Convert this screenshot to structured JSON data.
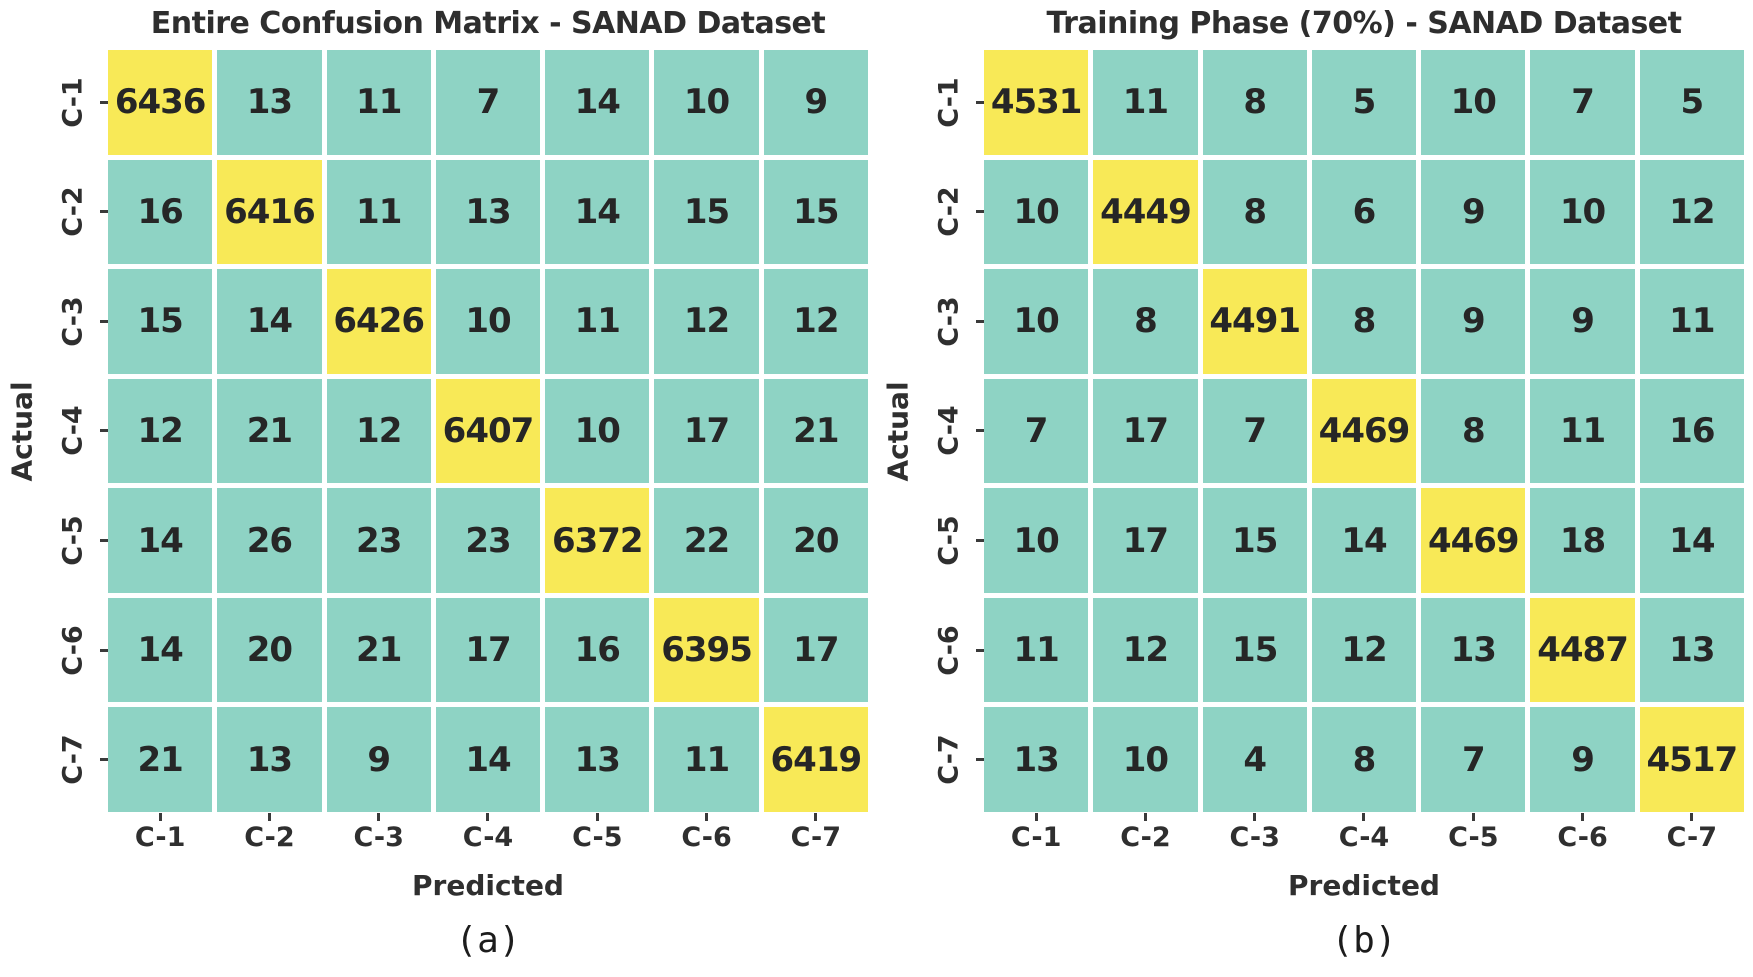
{
  "chart_data": [
    {
      "type": "heatmap",
      "title": "Entire Confusion Matrix - SANAD Dataset",
      "xlabel": "Predicted",
      "ylabel": "Actual",
      "caption": "(a)",
      "categories": [
        "C-1",
        "C-2",
        "C-3",
        "C-4",
        "C-5",
        "C-6",
        "C-7"
      ],
      "matrix": [
        [
          6436,
          13,
          11,
          7,
          14,
          10,
          9
        ],
        [
          16,
          6416,
          11,
          13,
          14,
          15,
          15
        ],
        [
          15,
          14,
          6426,
          10,
          11,
          12,
          12
        ],
        [
          12,
          21,
          12,
          6407,
          10,
          17,
          21
        ],
        [
          14,
          26,
          23,
          23,
          6372,
          22,
          20
        ],
        [
          14,
          20,
          21,
          17,
          16,
          6395,
          17
        ],
        [
          21,
          13,
          9,
          14,
          13,
          11,
          6419
        ]
      ],
      "colors": {
        "cell": "#8ed3c4",
        "diagonal": "#f8e957",
        "value_text": "#262626"
      },
      "layout": {
        "grid": "off",
        "legend": "none",
        "diagonal_highlight": true
      }
    },
    {
      "type": "heatmap",
      "title": "Training Phase (70%) - SANAD Dataset",
      "xlabel": "Predicted",
      "ylabel": "Actual",
      "caption": "(b)",
      "categories": [
        "C-1",
        "C-2",
        "C-3",
        "C-4",
        "C-5",
        "C-6",
        "C-7"
      ],
      "matrix": [
        [
          4531,
          11,
          8,
          5,
          10,
          7,
          5
        ],
        [
          10,
          4449,
          8,
          6,
          9,
          10,
          12
        ],
        [
          10,
          8,
          4491,
          8,
          9,
          9,
          11
        ],
        [
          7,
          17,
          7,
          4469,
          8,
          11,
          16
        ],
        [
          10,
          17,
          15,
          14,
          4469,
          18,
          14
        ],
        [
          11,
          12,
          15,
          12,
          13,
          4487,
          13
        ],
        [
          13,
          10,
          4,
          8,
          7,
          9,
          4517
        ]
      ],
      "colors": {
        "cell": "#8ed3c4",
        "diagonal": "#f8e957",
        "value_text": "#262626"
      },
      "layout": {
        "grid": "off",
        "legend": "none",
        "diagonal_highlight": true
      }
    }
  ]
}
